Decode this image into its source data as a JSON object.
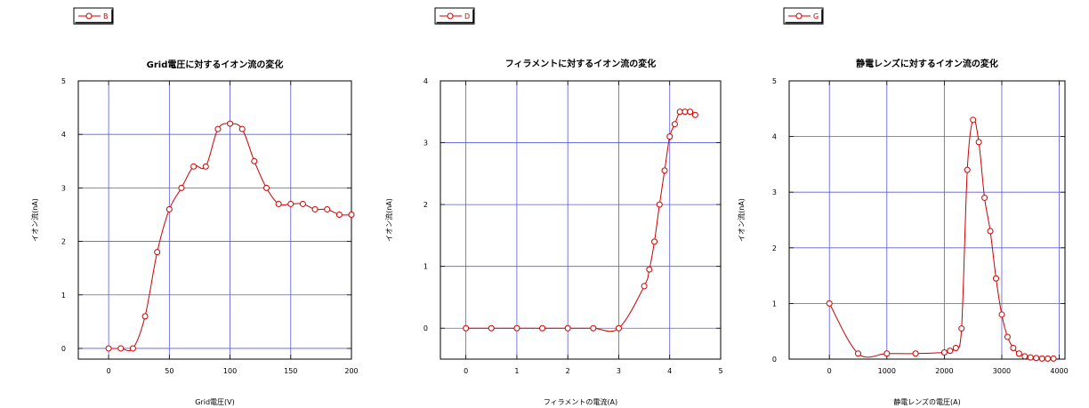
{
  "chart_data": [
    {
      "type": "line",
      "title": "Grid電圧に対するイオン流の変化",
      "xlabel": "Grid電圧(V)",
      "ylabel": "イオン流(nA)",
      "xlim": [
        -25,
        200
      ],
      "ylim": [
        -0.2,
        5
      ],
      "xticks": [
        0,
        50,
        100,
        150,
        200
      ],
      "yticks": [
        0,
        1,
        2,
        3,
        4,
        5
      ],
      "grid": true,
      "legend": "top-left",
      "series": [
        {
          "name": "B",
          "color": "#cc0000",
          "marker": "open-circle",
          "x": [
            0,
            10,
            20,
            30,
            40,
            50,
            60,
            70,
            80,
            90,
            100,
            110,
            120,
            130,
            140,
            150,
            160,
            170,
            180,
            190,
            200
          ],
          "y": [
            0.0,
            0.0,
            0.0,
            0.6,
            1.8,
            2.6,
            3.0,
            3.4,
            3.4,
            4.1,
            4.2,
            4.1,
            3.5,
            3.0,
            2.7,
            2.7,
            2.7,
            2.6,
            2.6,
            2.5,
            2.5
          ]
        }
      ]
    },
    {
      "type": "line",
      "title": "フィラメントに対するイオン流の変化",
      "xlabel": "フィラメントの電流(A)",
      "ylabel": "イオン流(nA)",
      "xlim": [
        -0.5,
        5
      ],
      "ylim": [
        -0.5,
        4
      ],
      "xticks": [
        0,
        1,
        2,
        3,
        4,
        5
      ],
      "yticks": [
        0,
        1,
        2,
        3,
        4
      ],
      "grid": true,
      "legend": "top-left",
      "series": [
        {
          "name": "D",
          "color": "#cc0000",
          "marker": "open-circle",
          "x": [
            0,
            0.5,
            1.0,
            1.5,
            2.0,
            2.5,
            3.0,
            3.5,
            3.6,
            3.7,
            3.8,
            3.9,
            4.0,
            4.1,
            4.2,
            4.3,
            4.4,
            4.5
          ],
          "y": [
            0.0,
            0.0,
            0.0,
            0.0,
            0.0,
            0.0,
            0.0,
            0.68,
            0.95,
            1.4,
            2.0,
            2.55,
            3.1,
            3.3,
            3.5,
            3.5,
            3.5,
            3.45
          ]
        }
      ]
    },
    {
      "type": "line",
      "title": "静電レンズに対するイオン流の変化",
      "xlabel": "静電レンズの電圧(A)",
      "ylabel": "イオン流(nA)",
      "xlim": [
        -700,
        4100
      ],
      "ylim": [
        0,
        5
      ],
      "xticks": [
        0,
        1000,
        2000,
        3000,
        4000
      ],
      "yticks": [
        0,
        1,
        2,
        3,
        4,
        5
      ],
      "grid": true,
      "legend": "top-left",
      "series": [
        {
          "name": "G",
          "color": "#cc0000",
          "marker": "open-circle",
          "x": [
            0,
            500,
            1000,
            1500,
            2000,
            2100,
            2200,
            2300,
            2400,
            2500,
            2600,
            2700,
            2800,
            2900,
            3000,
            3100,
            3200,
            3300,
            3400,
            3500,
            3600,
            3700,
            3800,
            3900
          ],
          "y": [
            1.0,
            0.1,
            0.1,
            0.1,
            0.12,
            0.15,
            0.2,
            0.55,
            3.4,
            4.3,
            3.9,
            2.9,
            2.3,
            1.45,
            0.8,
            0.4,
            0.2,
            0.1,
            0.05,
            0.03,
            0.02,
            0.01,
            0.01,
            0.01
          ]
        }
      ]
    }
  ]
}
